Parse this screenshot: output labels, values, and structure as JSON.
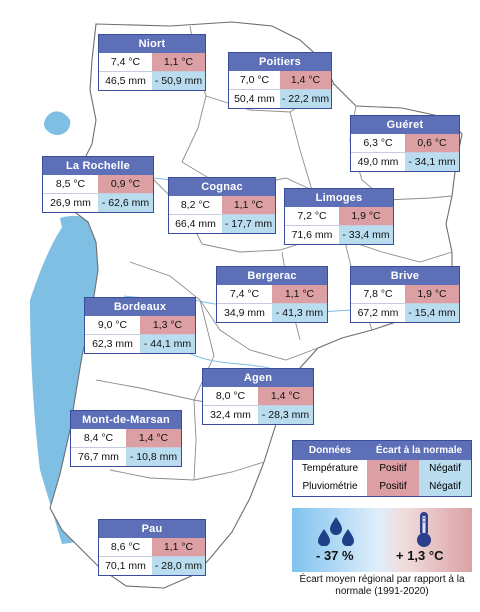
{
  "cities": [
    {
      "name": "Niort",
      "temp": "7,4 °C",
      "temp_dev": "1,1 °C",
      "temp_dev_sign": "positive",
      "rain": "46,5 mm",
      "rain_dev": "- 50,9 mm",
      "rain_dev_sign": "negative"
    },
    {
      "name": "Poitiers",
      "temp": "7,0 °C",
      "temp_dev": "1,4 °C",
      "temp_dev_sign": "positive",
      "rain": "50,4 mm",
      "rain_dev": "- 22,2 mm",
      "rain_dev_sign": "negative"
    },
    {
      "name": "Guéret",
      "temp": "6,3 °C",
      "temp_dev": "0,6 °C",
      "temp_dev_sign": "positive",
      "rain": "49,0 mm",
      "rain_dev": "- 34,1 mm",
      "rain_dev_sign": "negative"
    },
    {
      "name": "La Rochelle",
      "temp": "8,5 °C",
      "temp_dev": "0,9 °C",
      "temp_dev_sign": "positive",
      "rain": "26,9 mm",
      "rain_dev": "- 62,6 mm",
      "rain_dev_sign": "negative"
    },
    {
      "name": "Cognac",
      "temp": "8,2 °C",
      "temp_dev": "1,1 °C",
      "temp_dev_sign": "positive",
      "rain": "66,4 mm",
      "rain_dev": "- 17,7 mm",
      "rain_dev_sign": "negative"
    },
    {
      "name": "Limoges",
      "temp": "7,2 °C",
      "temp_dev": "1,9 °C",
      "temp_dev_sign": "positive",
      "rain": "71,6 mm",
      "rain_dev": "- 33,4 mm",
      "rain_dev_sign": "negative"
    },
    {
      "name": "Bergerac",
      "temp": "7,4 °C",
      "temp_dev": "1,1 °C",
      "temp_dev_sign": "positive",
      "rain": "34,9 mm",
      "rain_dev": "- 41,3 mm",
      "rain_dev_sign": "negative"
    },
    {
      "name": "Brive",
      "temp": "7,8 °C",
      "temp_dev": "1,9 °C",
      "temp_dev_sign": "positive",
      "rain": "67,2 mm",
      "rain_dev": "- 15,4 mm",
      "rain_dev_sign": "negative"
    },
    {
      "name": "Bordeaux",
      "temp": "9,0 °C",
      "temp_dev": "1,3 °C",
      "temp_dev_sign": "positive",
      "rain": "62,3 mm",
      "rain_dev": "- 44,1 mm",
      "rain_dev_sign": "negative"
    },
    {
      "name": "Agen",
      "temp": "8,0 °C",
      "temp_dev": "1,4 °C",
      "temp_dev_sign": "positive",
      "rain": "32,4 mm",
      "rain_dev": "- 28,3 mm",
      "rain_dev_sign": "negative"
    },
    {
      "name": "Mont-de-Marsan",
      "temp": "8,4 °C",
      "temp_dev": "1,4 °C",
      "temp_dev_sign": "positive",
      "rain": "76,7 mm",
      "rain_dev": "- 10,8 mm",
      "rain_dev_sign": "negative"
    },
    {
      "name": "Pau",
      "temp": "8,6 °C",
      "temp_dev": "1,1 °C",
      "temp_dev_sign": "positive",
      "rain": "70,1 mm",
      "rain_dev": "- 28,0 mm",
      "rain_dev_sign": "negative"
    }
  ],
  "legend": {
    "header_data": "Données",
    "header_dev": "Écart à la normale",
    "rows": [
      {
        "label": "Température",
        "pos": "Positif",
        "neg": "Négatif"
      },
      {
        "label": "Pluviométrie",
        "pos": "Positif",
        "neg": "Négatif"
      }
    ]
  },
  "summary": {
    "rain_dev": "- 37 %",
    "temp_dev": "+ 1,3 °C",
    "caption": "Écart moyen régional par rapport à la normale (1991-2020)"
  },
  "colors": {
    "header_blue": "#5d6fb7",
    "positive_red": "#dca0a4",
    "negative_blue": "#b9dcef",
    "sea_blue": "#7fbfe4",
    "land": "#ffffff",
    "border_grey": "#777777"
  },
  "icons": {
    "rain": "water-drops-icon",
    "temperature": "thermometer-icon"
  }
}
